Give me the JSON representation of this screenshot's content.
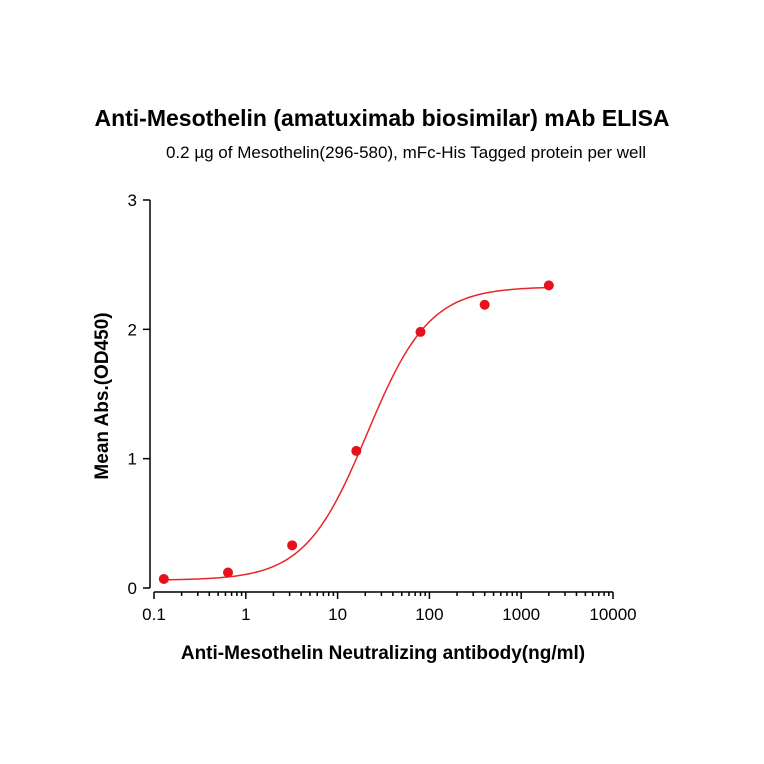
{
  "chart_data": {
    "type": "scatter",
    "title": "Anti-Mesothelin (amatuximab biosimilar) mAb ELISA",
    "subtitle": "0.2 µg of Mesothelin(296-580), mFc-His Tagged protein per well",
    "xlabel": "Anti-Mesothelin Neutralizing antibody(ng/ml)",
    "ylabel": "Mean Abs.(OD450)",
    "x_scale": "log",
    "xlim": [
      0.1,
      10000
    ],
    "ylim": [
      0,
      3
    ],
    "x_ticks": [
      0.1,
      1,
      10,
      100,
      1000,
      10000
    ],
    "x_tick_labels": [
      "0.1",
      "1",
      "10",
      "100",
      "1000",
      "10000"
    ],
    "y_ticks": [
      0,
      1,
      2,
      3
    ],
    "y_tick_labels": [
      "0",
      "1",
      "2",
      "3"
    ],
    "grid": false,
    "series": [
      {
        "x": [
          0.128,
          0.64,
          3.2,
          16,
          80,
          400,
          2000
        ],
        "y": [
          0.07,
          0.12,
          0.33,
          1.06,
          1.98,
          2.19,
          2.34
        ],
        "color": "#e8101a",
        "fit": "4PL sigmoid",
        "fit_color": "#e8262a"
      }
    ]
  }
}
